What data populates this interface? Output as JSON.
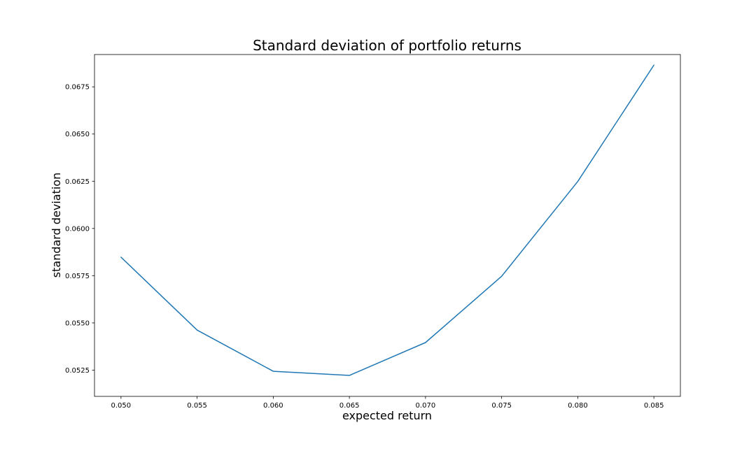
{
  "chart_data": {
    "type": "line",
    "title": "Standard deviation of portfolio returns",
    "xlabel": "expected return",
    "ylabel": "standard deviation",
    "x": [
      0.05,
      0.055,
      0.06,
      0.065,
      0.07,
      0.075,
      0.08,
      0.085
    ],
    "series": [
      {
        "values": [
          0.05848,
          0.05462,
          0.05244,
          0.05222,
          0.05396,
          0.05747,
          0.06249,
          0.06865
        ],
        "color": "#1f77b4"
      }
    ],
    "xticks": [
      "0.050",
      "0.055",
      "0.060",
      "0.065",
      "0.070",
      "0.075",
      "0.080",
      "0.085"
    ],
    "yticks": [
      "0.0525",
      "0.0550",
      "0.0575",
      "0.0600",
      "0.0625",
      "0.0650",
      "0.0675"
    ],
    "xlim": [
      0.04826,
      0.08674
    ],
    "ylim": [
      0.05111,
      0.06921
    ],
    "grid": false,
    "legend": "none"
  }
}
